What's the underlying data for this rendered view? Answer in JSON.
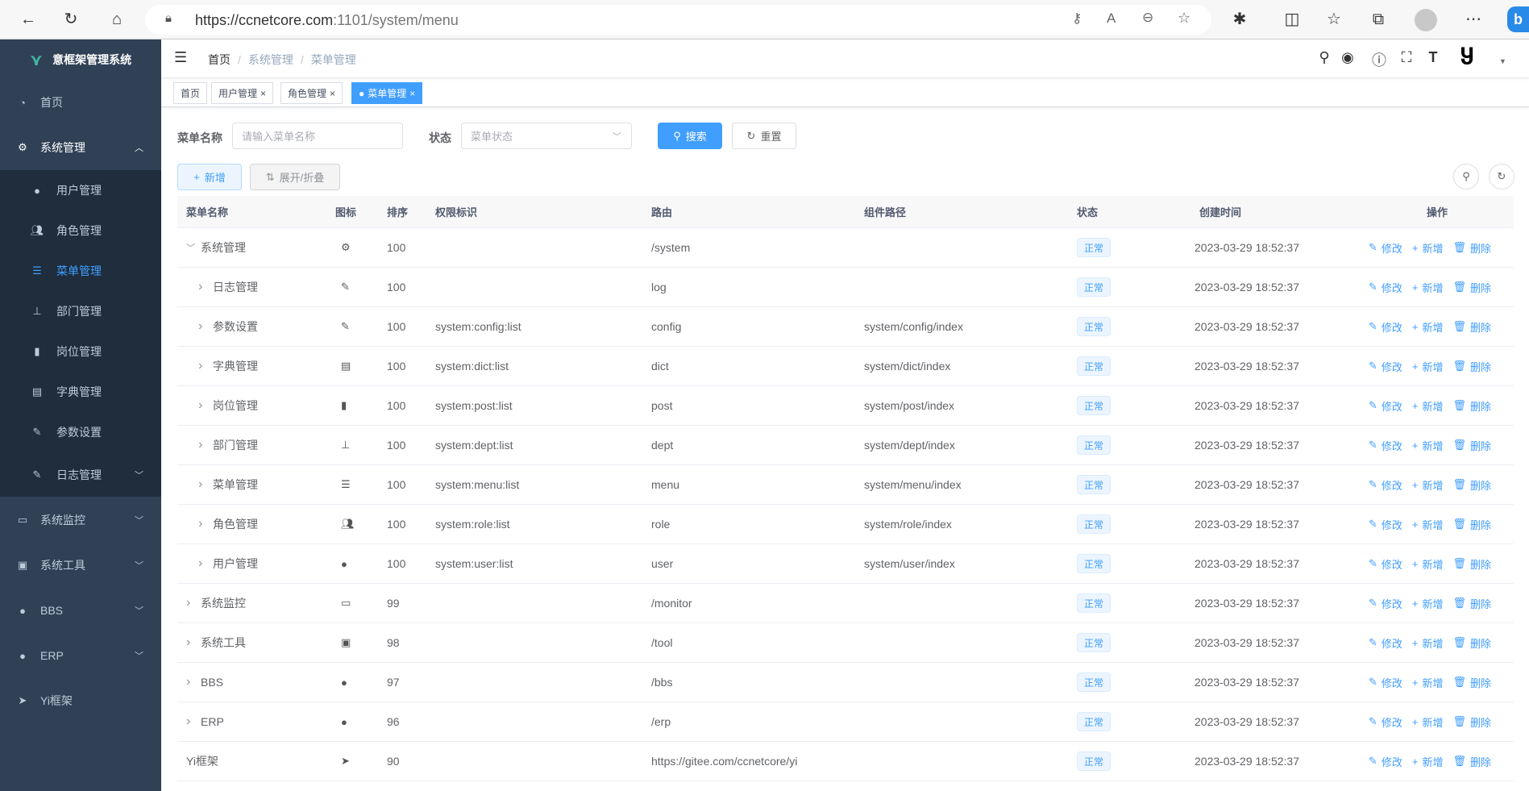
{
  "browser": {
    "url_host": "https://ccnetcore.com",
    "url_rest": ":1101/system/menu"
  },
  "sidebar": {
    "title": "意框架管理系统",
    "items": [
      {
        "label": "首页",
        "icon": "dashboard-icon"
      },
      {
        "label": "系统管理",
        "icon": "gear-icon",
        "expanded": true
      },
      {
        "label": "系统监控",
        "icon": "monitor-icon"
      },
      {
        "label": "系统工具",
        "icon": "toolbox-icon"
      },
      {
        "label": "BBS",
        "icon": "globe-icon"
      },
      {
        "label": "ERP",
        "icon": "globe-icon"
      },
      {
        "label": "Yi框架",
        "icon": "send-icon"
      }
    ],
    "subitems": [
      {
        "label": "用户管理",
        "icon": "user-icon"
      },
      {
        "label": "角色管理",
        "icon": "peoples-icon"
      },
      {
        "label": "菜单管理",
        "icon": "tree-table-icon",
        "active": true
      },
      {
        "label": "部门管理",
        "icon": "tree-icon"
      },
      {
        "label": "岗位管理",
        "icon": "post-icon"
      },
      {
        "label": "字典管理",
        "icon": "dict-icon"
      },
      {
        "label": "参数设置",
        "icon": "edit-icon"
      },
      {
        "label": "日志管理",
        "icon": "log-icon"
      }
    ]
  },
  "breadcrumb": [
    "首页",
    "系统管理",
    "菜单管理"
  ],
  "tags": [
    {
      "label": "首页"
    },
    {
      "label": "用户管理"
    },
    {
      "label": "角色管理"
    },
    {
      "label": "菜单管理",
      "active": true
    }
  ],
  "search": {
    "name_label": "菜单名称",
    "name_placeholder": "请输入菜单名称",
    "status_label": "状态",
    "status_placeholder": "菜单状态",
    "search_btn": "搜索",
    "reset_btn": "重置"
  },
  "toolbar": {
    "add_btn": "新增",
    "expand_btn": "展开/折叠"
  },
  "colors": {
    "accent": "#409eff",
    "sidebar": "#304156",
    "submenu": "#1f2d3d"
  },
  "table": {
    "headers": [
      "菜单名称",
      "图标",
      "排序",
      "权限标识",
      "路由",
      "组件路径",
      "状态",
      "创建时间",
      "操作"
    ],
    "actions": [
      "修改",
      "新增",
      "删除"
    ],
    "rows": [
      {
        "name": "系统管理",
        "icon": "gear-icon",
        "sort": "100",
        "perm": "",
        "route": "/system",
        "component": "",
        "status": "正常",
        "created": "2023-03-29 18:52:37",
        "level": 0,
        "expander": "down"
      },
      {
        "name": "日志管理",
        "icon": "log-icon",
        "sort": "100",
        "perm": "",
        "route": "log",
        "component": "",
        "status": "正常",
        "created": "2023-03-29 18:52:37",
        "level": 1,
        "expander": "right"
      },
      {
        "name": "参数设置",
        "icon": "edit-icon",
        "sort": "100",
        "perm": "system:config:list",
        "route": "config",
        "component": "system/config/index",
        "status": "正常",
        "created": "2023-03-29 18:52:37",
        "level": 1,
        "expander": "right"
      },
      {
        "name": "字典管理",
        "icon": "dict-icon",
        "sort": "100",
        "perm": "system:dict:list",
        "route": "dict",
        "component": "system/dict/index",
        "status": "正常",
        "created": "2023-03-29 18:52:37",
        "level": 1,
        "expander": "right"
      },
      {
        "name": "岗位管理",
        "icon": "post-icon",
        "sort": "100",
        "perm": "system:post:list",
        "route": "post",
        "component": "system/post/index",
        "status": "正常",
        "created": "2023-03-29 18:52:37",
        "level": 1,
        "expander": "right"
      },
      {
        "name": "部门管理",
        "icon": "tree-icon",
        "sort": "100",
        "perm": "system:dept:list",
        "route": "dept",
        "component": "system/dept/index",
        "status": "正常",
        "created": "2023-03-29 18:52:37",
        "level": 1,
        "expander": "right"
      },
      {
        "name": "菜单管理",
        "icon": "tree-table-icon",
        "sort": "100",
        "perm": "system:menu:list",
        "route": "menu",
        "component": "system/menu/index",
        "status": "正常",
        "created": "2023-03-29 18:52:37",
        "level": 1,
        "expander": "right"
      },
      {
        "name": "角色管理",
        "icon": "peoples-icon",
        "sort": "100",
        "perm": "system:role:list",
        "route": "role",
        "component": "system/role/index",
        "status": "正常",
        "created": "2023-03-29 18:52:37",
        "level": 1,
        "expander": "right"
      },
      {
        "name": "用户管理",
        "icon": "user-icon",
        "sort": "100",
        "perm": "system:user:list",
        "route": "user",
        "component": "system/user/index",
        "status": "正常",
        "created": "2023-03-29 18:52:37",
        "level": 1,
        "expander": "right"
      },
      {
        "name": "系统监控",
        "icon": "monitor-icon",
        "sort": "99",
        "perm": "",
        "route": "/monitor",
        "component": "",
        "status": "正常",
        "created": "2023-03-29 18:52:37",
        "level": 0,
        "expander": "right"
      },
      {
        "name": "系统工具",
        "icon": "toolbox-icon",
        "sort": "98",
        "perm": "",
        "route": "/tool",
        "component": "",
        "status": "正常",
        "created": "2023-03-29 18:52:37",
        "level": 0,
        "expander": "right"
      },
      {
        "name": "BBS",
        "icon": "globe-icon",
        "sort": "97",
        "perm": "",
        "route": "/bbs",
        "component": "",
        "status": "正常",
        "created": "2023-03-29 18:52:37",
        "level": 0,
        "expander": "right"
      },
      {
        "name": "ERP",
        "icon": "globe-icon",
        "sort": "96",
        "perm": "",
        "route": "/erp",
        "component": "",
        "status": "正常",
        "created": "2023-03-29 18:52:37",
        "level": 0,
        "expander": "right"
      },
      {
        "name": "Yi框架",
        "icon": "send-icon",
        "sort": "90",
        "perm": "",
        "route": "https://gitee.com/ccnetcore/yi",
        "component": "",
        "status": "正常",
        "created": "2023-03-29 18:52:37",
        "level": 0,
        "expander": ""
      }
    ]
  }
}
